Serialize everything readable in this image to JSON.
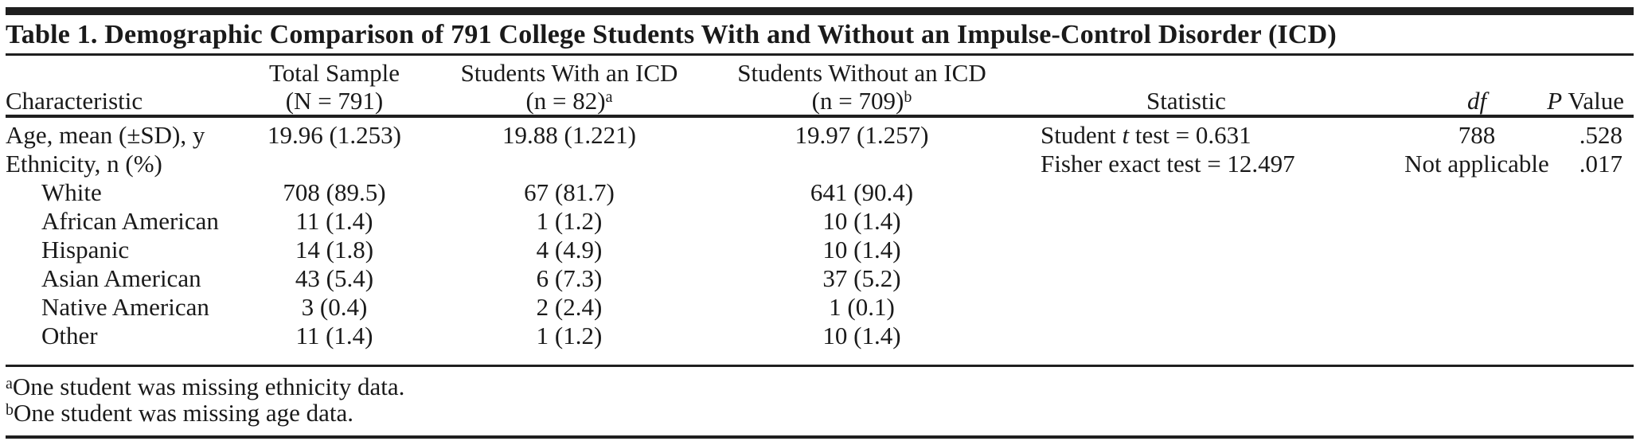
{
  "title": "Table 1. Demographic Comparison of 791 College Students With and Without an Impulse-Control Disorder (ICD)",
  "columns": {
    "characteristic": "Characteristic",
    "total": {
      "line1": "Total Sample",
      "line2": "(N = 791)",
      "sup": ""
    },
    "with_icd": {
      "line1": "Students With an ICD",
      "line2": "(n = 82)",
      "sup": "a"
    },
    "without_icd": {
      "line1": "Students Without an ICD",
      "line2": "(n = 709)",
      "sup": "b"
    },
    "statistic": "Statistic",
    "df": "df",
    "p_value": {
      "italic": "P",
      "rest": " Value"
    }
  },
  "rows": [
    {
      "label": "Age, mean (±SD), y",
      "total": "19.96 (1.253)",
      "with_icd": "19.88 (1.221)",
      "without_icd": "19.97 (1.257)",
      "stat_pre": "Student ",
      "stat_italic": "t",
      "stat_post": " test = 0.631",
      "df": "788",
      "p": ".528"
    },
    {
      "label": "Ethnicity, n (%)",
      "total": "",
      "with_icd": "",
      "without_icd": "",
      "stat_pre": "Fisher exact test = 12.497",
      "stat_italic": "",
      "stat_post": "",
      "df": "Not applicable",
      "p": ".017"
    },
    {
      "label": "White",
      "total": "708 (89.5)",
      "with_icd": "67 (81.7)",
      "without_icd": "641 (90.4)",
      "stat_pre": "",
      "stat_italic": "",
      "stat_post": "",
      "df": "",
      "p": ""
    },
    {
      "label": "African American",
      "total": "11 (1.4)",
      "with_icd": "1 (1.2)",
      "without_icd": "10 (1.4)",
      "stat_pre": "",
      "stat_italic": "",
      "stat_post": "",
      "df": "",
      "p": ""
    },
    {
      "label": "Hispanic",
      "total": "14 (1.8)",
      "with_icd": "4 (4.9)",
      "without_icd": "10 (1.4)",
      "stat_pre": "",
      "stat_italic": "",
      "stat_post": "",
      "df": "",
      "p": ""
    },
    {
      "label": "Asian American",
      "total": "43 (5.4)",
      "with_icd": "6 (7.3)",
      "without_icd": "37 (5.2)",
      "stat_pre": "",
      "stat_italic": "",
      "stat_post": "",
      "df": "",
      "p": ""
    },
    {
      "label": "Native American",
      "total": "3 (0.4)",
      "with_icd": "2 (2.4)",
      "without_icd": "1 (0.1)",
      "stat_pre": "",
      "stat_italic": "",
      "stat_post": "",
      "df": "",
      "p": ""
    },
    {
      "label": "Other",
      "total": "11 (1.4)",
      "with_icd": "1 (1.2)",
      "without_icd": "10 (1.4)",
      "stat_pre": "",
      "stat_italic": "",
      "stat_post": "",
      "df": "",
      "p": ""
    }
  ],
  "footnotes": [
    {
      "marker": "a",
      "text": "One student was missing ethnicity data."
    },
    {
      "marker": "b",
      "text": "One student was missing age data."
    }
  ],
  "colors": {
    "text": "#1a1a1a",
    "rule": "#1f1f1f",
    "background": "#ffffff"
  }
}
